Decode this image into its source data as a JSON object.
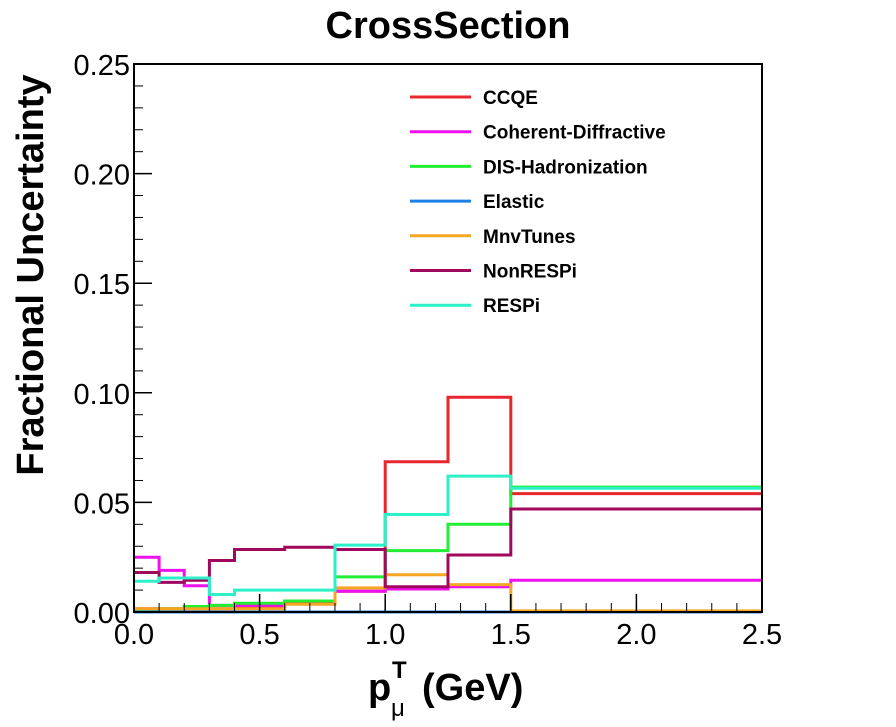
{
  "chart_data": {
    "type": "line",
    "title": "CrossSection",
    "xlabel_main": "p",
    "xlabel_sup": "T",
    "xlabel_sub": "μ",
    "xlabel_unit": "(GeV)",
    "ylabel": "Fractional Uncertainty",
    "xlim": [
      0.0,
      2.5
    ],
    "ylim": [
      0.0,
      0.25
    ],
    "x_ticks": [
      {
        "value": 0.0,
        "label": "0.0"
      },
      {
        "value": 0.5,
        "label": "0.5"
      },
      {
        "value": 1.0,
        "label": "1.0"
      },
      {
        "value": 1.5,
        "label": "1.5"
      },
      {
        "value": 2.0,
        "label": "2.0"
      },
      {
        "value": 2.5,
        "label": "2.5"
      }
    ],
    "y_ticks": [
      {
        "value": 0.0,
        "label": "0.00"
      },
      {
        "value": 0.05,
        "label": "0.05"
      },
      {
        "value": 0.1,
        "label": "0.10"
      },
      {
        "value": 0.15,
        "label": "0.15"
      },
      {
        "value": 0.2,
        "label": "0.20"
      },
      {
        "value": 0.25,
        "label": "0.25"
      }
    ],
    "x_minor_step": 0.1,
    "y_minor_step": 0.01,
    "grid": false,
    "legend_position": "top-center",
    "bin_edges": [
      0.0,
      0.1,
      0.2,
      0.3,
      0.4,
      0.6,
      0.8,
      1.0,
      1.25,
      1.5,
      2.5
    ],
    "series": [
      {
        "name": "CCQE",
        "color": "#e8262e",
        "values": [
          0.0015,
          0.0015,
          0.0015,
          0.0015,
          0.0025,
          0.004,
          0.0095,
          0.0685,
          0.098,
          0.054
        ]
      },
      {
        "name": "Coherent-Diffractive",
        "color": "#ee11ee",
        "values": [
          0.025,
          0.019,
          0.012,
          0.003,
          0.003,
          0.005,
          0.0095,
          0.0105,
          0.0115,
          0.0145
        ]
      },
      {
        "name": "DIS-Hadronization",
        "color": "#22ee33",
        "values": [
          0.001,
          0.0015,
          0.0025,
          0.003,
          0.004,
          0.005,
          0.016,
          0.028,
          0.04,
          0.057
        ]
      },
      {
        "name": "Elastic",
        "color": "#1f7fe8",
        "values": [
          0.0,
          0.0,
          0.0,
          0.0,
          0.0,
          0.0,
          0.0,
          0.0,
          0.0,
          0.0
        ]
      },
      {
        "name": "MnvTunes",
        "color": "#f5a623",
        "values": [
          0.0015,
          0.0015,
          0.0015,
          0.0015,
          0.0015,
          0.0035,
          0.011,
          0.017,
          0.0125,
          0.0005
        ]
      },
      {
        "name": "NonRESPi",
        "color": "#a0085e",
        "values": [
          0.018,
          0.0135,
          0.0145,
          0.0235,
          0.0285,
          0.0295,
          0.0285,
          0.0115,
          0.026,
          0.047
        ]
      },
      {
        "name": "RESPi",
        "color": "#2cf0c8",
        "values": [
          0.014,
          0.0155,
          0.0155,
          0.008,
          0.01,
          0.01,
          0.0305,
          0.0445,
          0.062,
          0.0565
        ]
      }
    ]
  }
}
